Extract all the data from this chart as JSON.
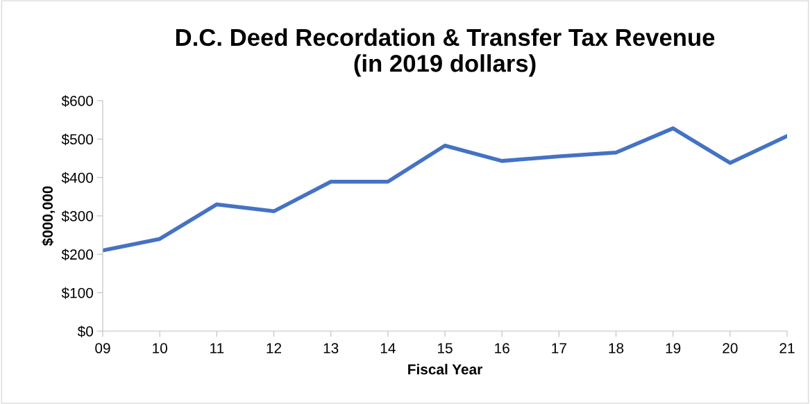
{
  "chart_data": {
    "type": "line",
    "title": "D.C. Deed Recordation & Transfer Tax Revenue\n(in 2019 dollars)",
    "xlabel": "Fiscal Year",
    "ylabel": "$000,000",
    "categories": [
      "09",
      "10",
      "11",
      "12",
      "13",
      "14",
      "15",
      "16",
      "17",
      "18",
      "19",
      "20",
      "21"
    ],
    "series": [
      {
        "color": "#4472c4",
        "values": [
          210,
          240,
          330,
          312,
          389,
          389,
          483,
          443,
          455,
          465,
          528,
          438,
          508
        ]
      }
    ],
    "ylim": [
      0,
      600
    ],
    "yticks": [
      {
        "value": 0,
        "label": "$0"
      },
      {
        "value": 100,
        "label": "$100"
      },
      {
        "value": 200,
        "label": "$200"
      },
      {
        "value": 300,
        "label": "$300"
      },
      {
        "value": 400,
        "label": "$400"
      },
      {
        "value": 500,
        "label": "$500"
      },
      {
        "value": 600,
        "label": "$600"
      }
    ],
    "grid": false,
    "marker": "none",
    "line_style": "solid"
  }
}
